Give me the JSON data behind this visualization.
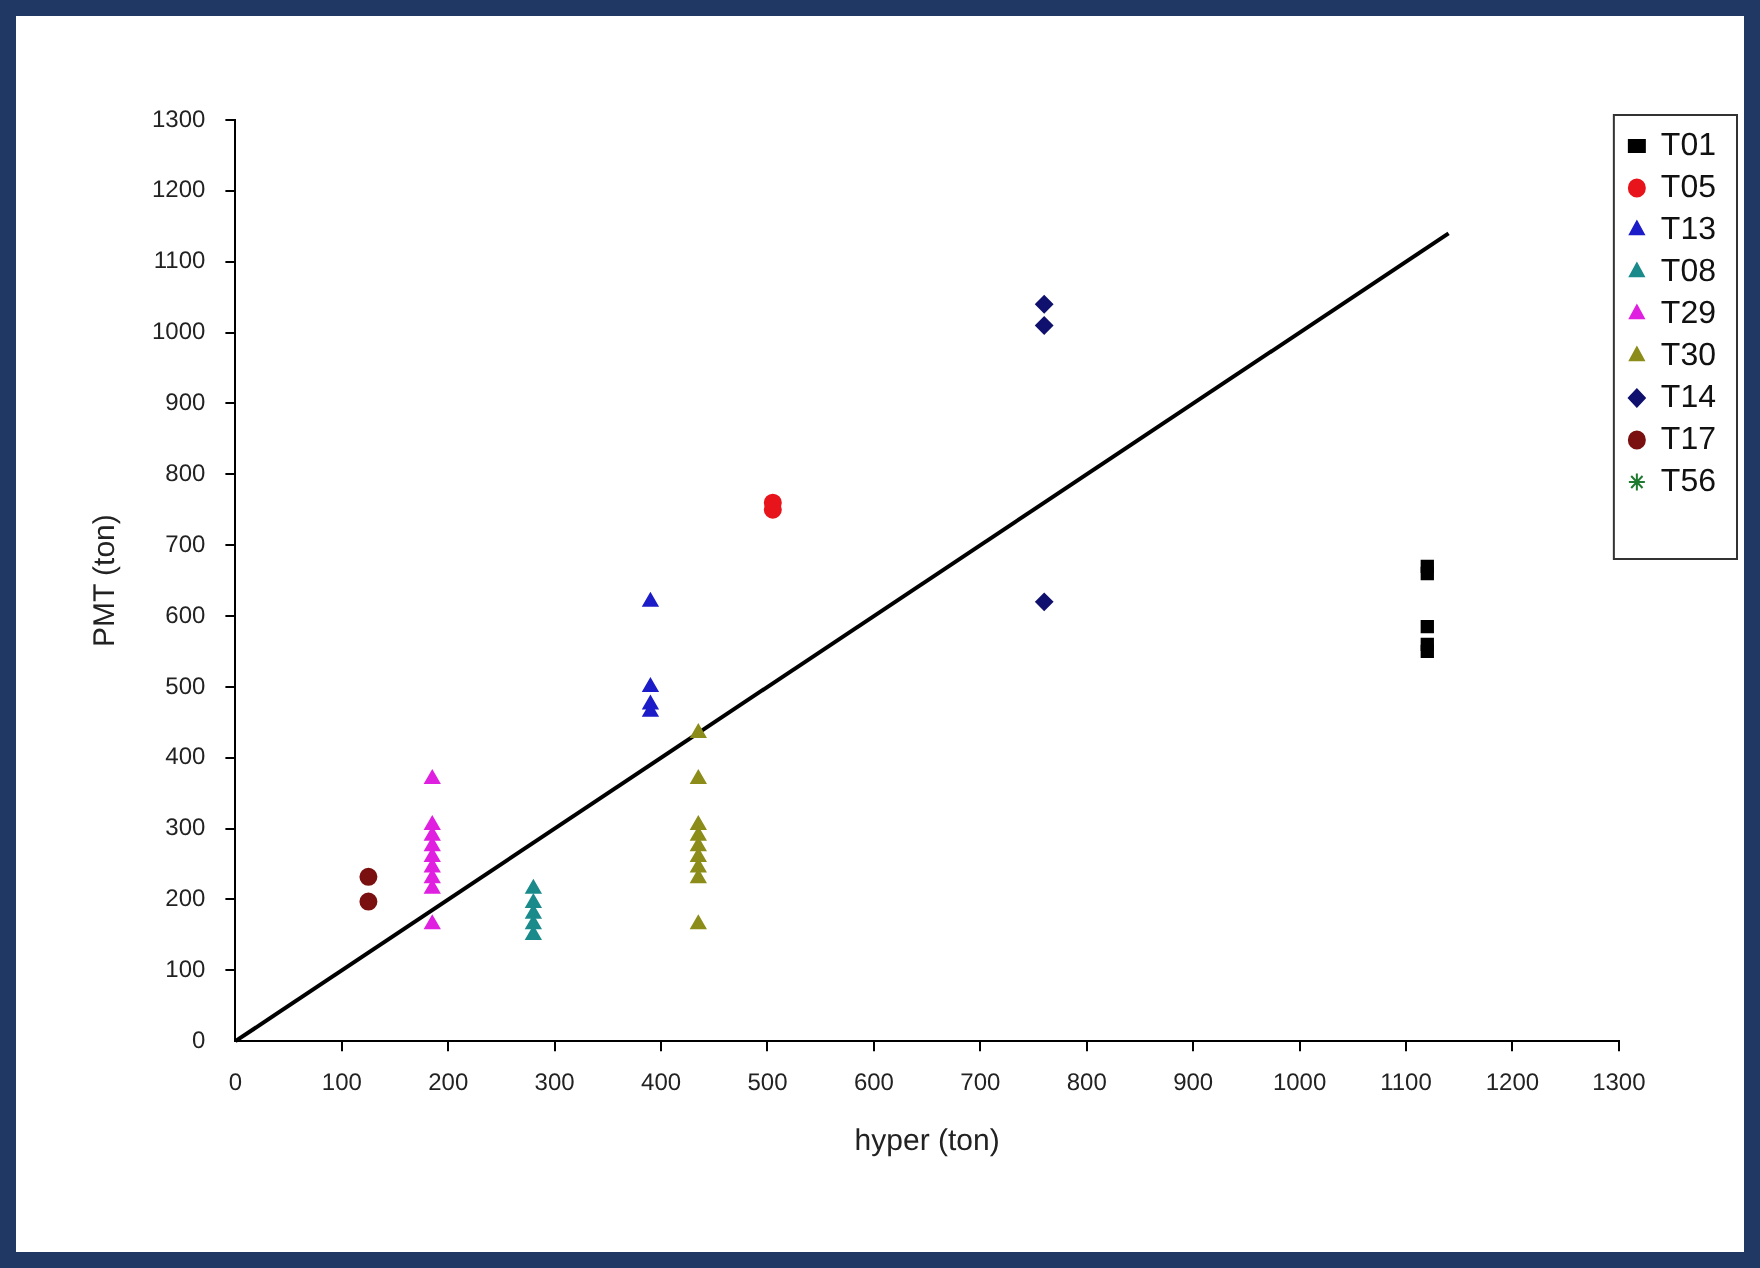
{
  "chart_data": {
    "type": "scatter",
    "xlabel": "hyper (ton)",
    "ylabel": "PMT (ton)",
    "xlim": [
      0,
      1300
    ],
    "xticks": [
      0,
      100,
      200,
      300,
      400,
      500,
      600,
      700,
      800,
      900,
      1000,
      1100,
      1200,
      1300
    ],
    "ylim": [
      0,
      1300
    ],
    "yticks": [
      0,
      100,
      200,
      300,
      400,
      500,
      600,
      700,
      800,
      900,
      1000,
      1100,
      1200,
      1300
    ],
    "grid": false,
    "legend": "top right",
    "series": [
      {
        "name": "T01",
        "color": "#000000",
        "marker": "square",
        "x": [
          1120,
          1120,
          1120,
          1120,
          1120
        ],
        "values": [
          670,
          660,
          585,
          560,
          550
        ]
      },
      {
        "name": "T05",
        "color": "#e8141c",
        "marker": "circle",
        "x": [
          505,
          505
        ],
        "values": [
          760,
          750
        ]
      },
      {
        "name": "T13",
        "color": "#1c1cc8",
        "marker": "triangle",
        "x": [
          390,
          390,
          390,
          390
        ],
        "values": [
          620,
          500,
          475,
          465
        ]
      },
      {
        "name": "T08",
        "color": "#1a8a8a",
        "marker": "triangle",
        "x": [
          280,
          280,
          280,
          280,
          280
        ],
        "values": [
          215,
          195,
          180,
          165,
          150
        ]
      },
      {
        "name": "T29",
        "color": "#e020e0",
        "marker": "triangle",
        "x": [
          185,
          185,
          185,
          185,
          185,
          185,
          185,
          185,
          185
        ],
        "values": [
          370,
          305,
          290,
          275,
          260,
          245,
          230,
          215,
          165
        ]
      },
      {
        "name": "T30",
        "color": "#8c8c1a",
        "marker": "triangle",
        "x": [
          435,
          435,
          435,
          435,
          435,
          435,
          435,
          435,
          435
        ],
        "values": [
          435,
          370,
          305,
          290,
          275,
          260,
          245,
          230,
          165
        ]
      },
      {
        "name": "T14",
        "color": "#10106e",
        "marker": "diamond",
        "x": [
          760,
          760,
          760
        ],
        "values": [
          1040,
          1010,
          620
        ]
      },
      {
        "name": "T17",
        "color": "#7a1010",
        "marker": "circle",
        "x": [
          125,
          125
        ],
        "values": [
          232,
          197
        ]
      },
      {
        "name": "T56",
        "color": "#1e7a2e",
        "marker": "star"
      },
      {
        "type": "line",
        "color": "#000000",
        "marker": "none",
        "x": [
          0,
          1140
        ],
        "values": [
          0,
          1140
        ]
      }
    ]
  }
}
